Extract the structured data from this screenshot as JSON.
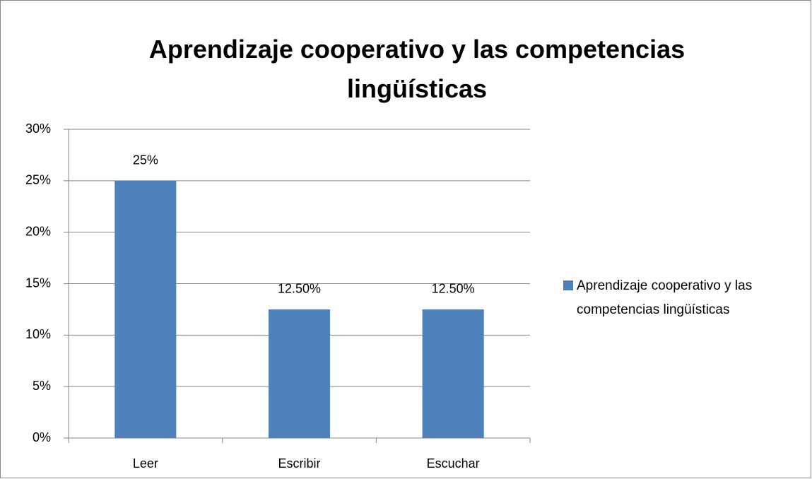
{
  "chart_data": {
    "type": "bar",
    "title": "Aprendizaje cooperativo y las competencias lingüísticas",
    "categories": [
      "Leer",
      "Escribir",
      "Escuchar"
    ],
    "series": [
      {
        "name": "Aprendizaje cooperativo y las competencias lingüísticas",
        "color": "#4f81bd",
        "values": [
          25,
          12.5,
          12.5
        ],
        "value_labels": [
          "25%",
          "12.50%",
          "12.50%"
        ]
      }
    ],
    "ylim": [
      0,
      30
    ],
    "yticks": [
      {
        "value": 0,
        "label": "0%"
      },
      {
        "value": 5,
        "label": "5%"
      },
      {
        "value": 10,
        "label": "10%"
      },
      {
        "value": 15,
        "label": "15%"
      },
      {
        "value": 20,
        "label": "20%"
      },
      {
        "value": 25,
        "label": "25%"
      },
      {
        "value": 30,
        "label": "30%"
      }
    ],
    "grid": true,
    "legend": "right"
  }
}
